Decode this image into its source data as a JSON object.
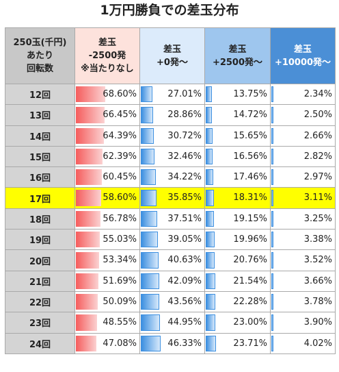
{
  "title": "1万円勝負での差玉分布",
  "chart_data": {
    "type": "table",
    "title": "1万円勝負での差玉分布",
    "header_label_lines": [
      "250玉(千円)",
      "あたり",
      "回転数"
    ],
    "columns": [
      {
        "lines": [
          "差玉",
          "-2500発",
          "※当たりなし"
        ],
        "bar_color": "#f55c5c"
      },
      {
        "lines": [
          "差玉",
          "+0発～"
        ],
        "bar_color": "#3c8fe0"
      },
      {
        "lines": [
          "差玉",
          "+2500発～"
        ],
        "bar_color": "#3c8fe0"
      },
      {
        "lines": [
          "差玉",
          "+10000発～"
        ],
        "bar_color": "#3c8fe0"
      }
    ],
    "highlight_row": "17回",
    "highlight_color": "#ffff00",
    "rows": [
      {
        "label": "12回",
        "values": [
          "68.60%",
          "27.01%",
          "13.75%",
          "2.34%"
        ]
      },
      {
        "label": "13回",
        "values": [
          "66.45%",
          "28.86%",
          "14.72%",
          "2.50%"
        ]
      },
      {
        "label": "14回",
        "values": [
          "64.39%",
          "30.72%",
          "15.65%",
          "2.66%"
        ]
      },
      {
        "label": "15回",
        "values": [
          "62.39%",
          "32.46%",
          "16.56%",
          "2.82%"
        ]
      },
      {
        "label": "16回",
        "values": [
          "60.45%",
          "34.22%",
          "17.46%",
          "2.97%"
        ]
      },
      {
        "label": "17回",
        "values": [
          "58.60%",
          "35.85%",
          "18.31%",
          "3.11%"
        ]
      },
      {
        "label": "18回",
        "values": [
          "56.78%",
          "37.51%",
          "19.15%",
          "3.25%"
        ]
      },
      {
        "label": "19回",
        "values": [
          "55.03%",
          "39.05%",
          "19.96%",
          "3.38%"
        ]
      },
      {
        "label": "20回",
        "values": [
          "53.34%",
          "40.63%",
          "20.76%",
          "3.52%"
        ]
      },
      {
        "label": "21回",
        "values": [
          "51.69%",
          "42.09%",
          "21.54%",
          "3.66%"
        ]
      },
      {
        "label": "22回",
        "values": [
          "50.09%",
          "43.56%",
          "22.28%",
          "3.78%"
        ]
      },
      {
        "label": "23回",
        "values": [
          "48.55%",
          "44.95%",
          "23.00%",
          "3.90%"
        ]
      },
      {
        "label": "24回",
        "values": [
          "47.08%",
          "46.33%",
          "23.71%",
          "4.02%"
        ]
      }
    ]
  }
}
